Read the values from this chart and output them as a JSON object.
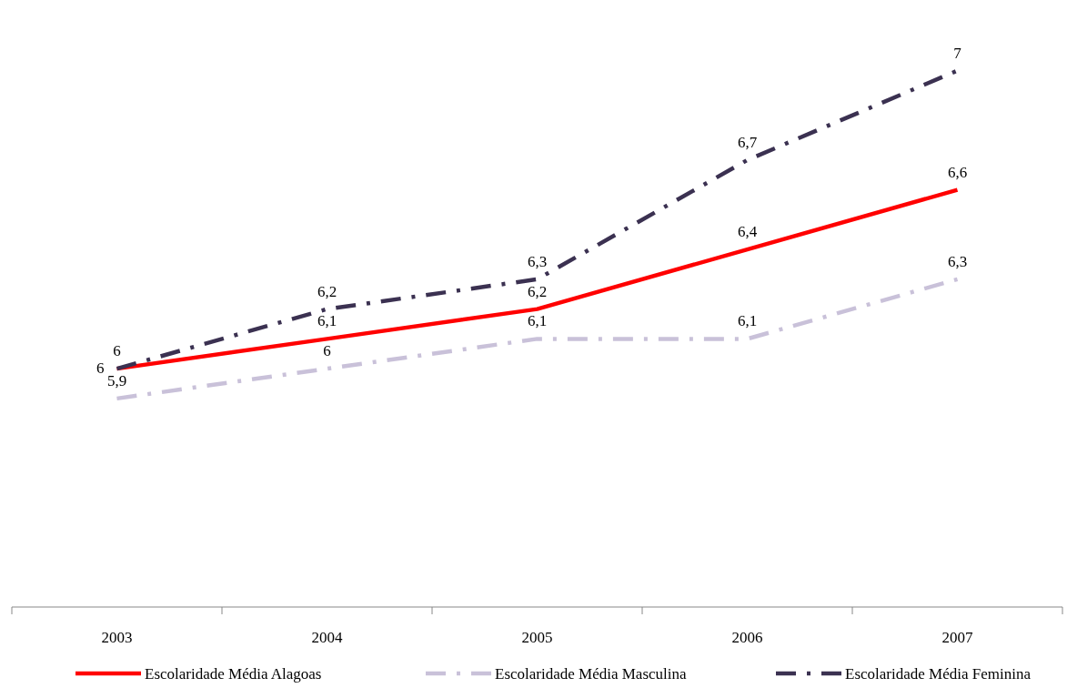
{
  "chart_data": {
    "type": "line",
    "categories": [
      "2003",
      "2004",
      "2005",
      "2006",
      "2007"
    ],
    "series": [
      {
        "name": "Escolaridade Média Alagoas",
        "color": "#ff0000",
        "line_style": "solid",
        "values": [
          6,
          6.1,
          6.2,
          6.4,
          6.6
        ],
        "value_labels": [
          "6",
          "6,1",
          "6,2",
          "6,4",
          "6,6"
        ]
      },
      {
        "name": "Escolaridade Média Masculina",
        "color": "#c9c1d9",
        "line_style": "dashed",
        "values": [
          5.9,
          6,
          6.1,
          6.1,
          6.3
        ],
        "value_labels": [
          "5,9",
          "6",
          "6,1",
          "6,1",
          "6,3"
        ]
      },
      {
        "name": "Escolaridade Média Feminina",
        "color": "#3b3151",
        "line_style": "dashed",
        "values": [
          6,
          6.2,
          6.3,
          6.7,
          7
        ],
        "value_labels": [
          "6",
          "6,2",
          "6,3",
          "6,7",
          "7"
        ]
      }
    ],
    "legend": "bottom",
    "grid": false,
    "marker": "none"
  }
}
